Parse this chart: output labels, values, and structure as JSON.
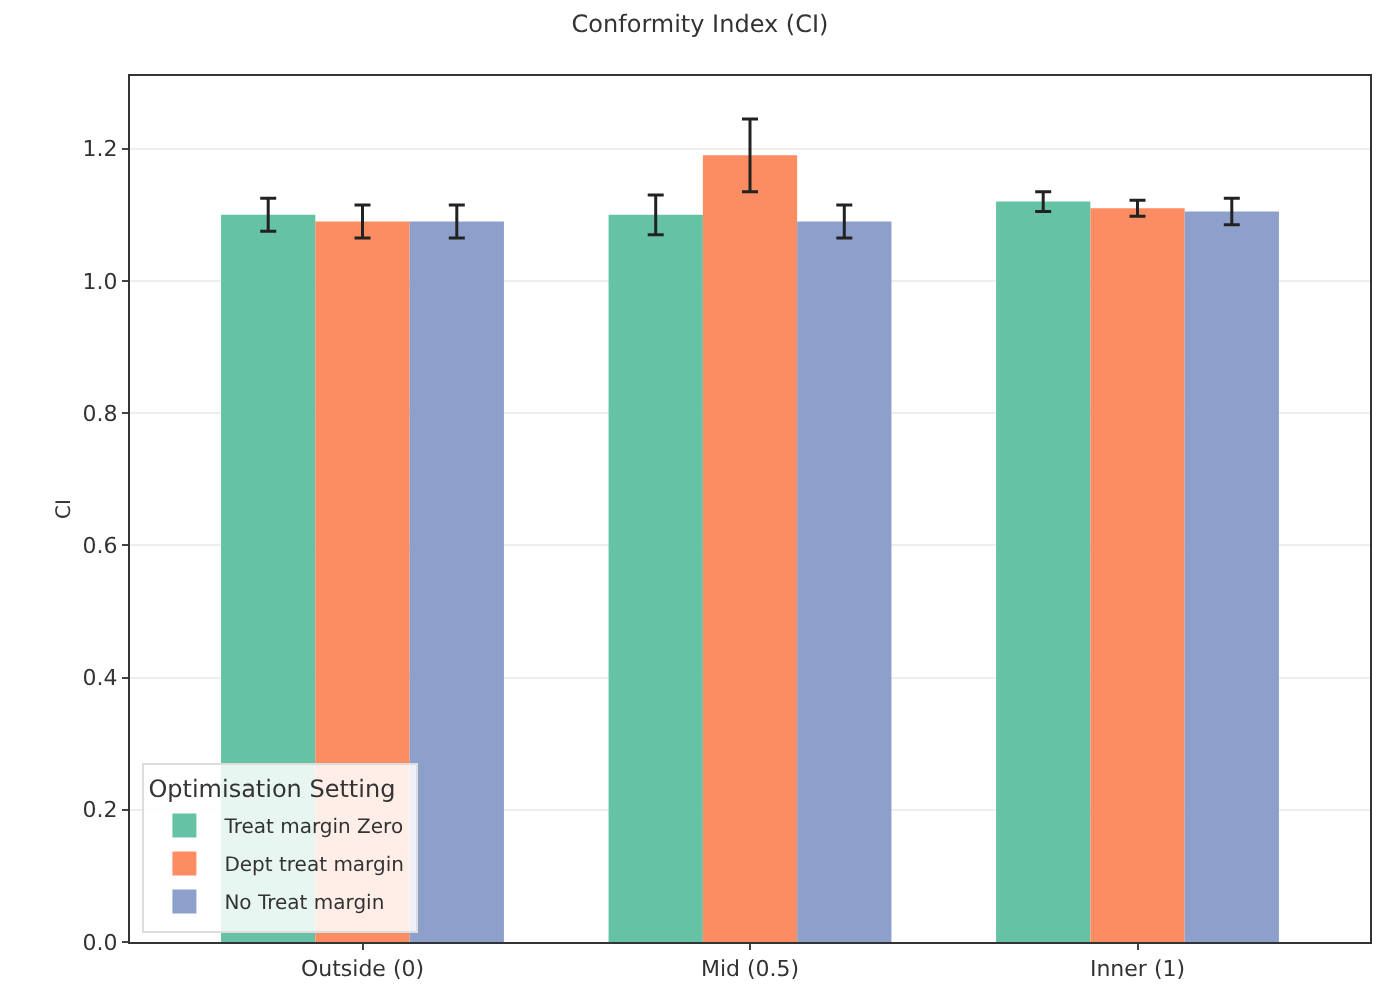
{
  "chart_data": {
    "type": "bar",
    "title": "Conformity Index (CI)",
    "ylabel": "CI",
    "legend_title": "Optimisation Setting",
    "categories": [
      "Outside (0)",
      "Mid (0.5)",
      "Inner (1)"
    ],
    "series": [
      {
        "name": "Treat margin Zero",
        "color": "#66c2a5",
        "values": [
          1.1,
          1.1,
          1.12
        ],
        "errors": [
          0.025,
          0.03,
          0.015
        ]
      },
      {
        "name": "Dept treat margin",
        "color": "#fc8d62",
        "values": [
          1.09,
          1.19,
          1.11
        ],
        "errors": [
          0.025,
          0.055,
          0.012
        ]
      },
      {
        "name": "No Treat margin",
        "color": "#8da0cb",
        "values": [
          1.09,
          1.09,
          1.105
        ],
        "errors": [
          0.025,
          0.025,
          0.02
        ]
      }
    ],
    "ylim": [
      0,
      1.31
    ],
    "yticks": [
      {
        "value": 0,
        "label": "0.0"
      },
      0.2,
      0.4,
      0.6,
      0.8,
      {
        "value": 1,
        "label": "1.0"
      },
      1.2
    ],
    "grid": "y",
    "legend": "bottom left"
  }
}
